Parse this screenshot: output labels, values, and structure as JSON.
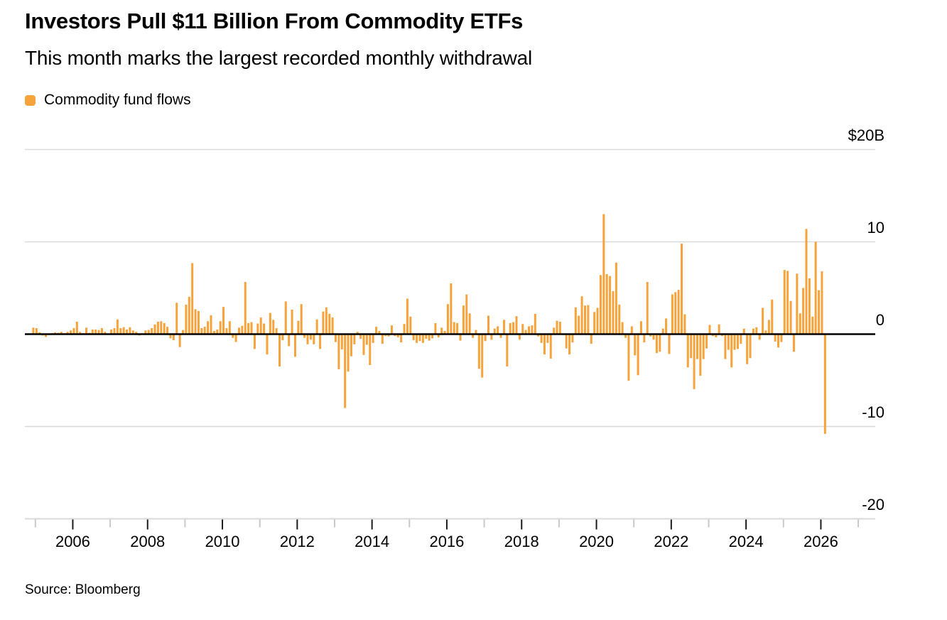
{
  "header": {
    "title": "Investors Pull $11 Billion From Commodity ETFs",
    "subtitle": "This month marks the largest recorded monthly withdrawal"
  },
  "legend": {
    "label": "Commodity fund flows"
  },
  "source": "Source: Bloomberg",
  "colors": {
    "bar": "#F7A33B",
    "gridline": "#D9D9D9",
    "zero_line": "#000000",
    "axis_line": "#D9D9D9",
    "tick_major": "#1A1A1A",
    "tick_minor": "#C9C9C9",
    "text": "#000000"
  },
  "y_axis": {
    "labels": [
      {
        "text": "$20B",
        "value": 20
      },
      {
        "text": "10",
        "value": 10
      },
      {
        "text": "0",
        "value": 0
      },
      {
        "text": "-10",
        "value": -10
      },
      {
        "text": "-20",
        "value": -20
      }
    ],
    "gridline_values": [
      20,
      10,
      -10
    ],
    "axis_value": -20
  },
  "x_axis": {
    "tick_years_start": 2005,
    "tick_years_end": 2027,
    "labeled_years": [
      2006,
      2008,
      2010,
      2012,
      2014,
      2016,
      2018,
      2020,
      2022,
      2024,
      2026
    ]
  },
  "chart_data": {
    "type": "bar",
    "title": "Investors Pull $11 Billion From Commodity ETFs",
    "subtitle": "This month marks the largest recorded monthly withdrawal",
    "series_name": "Commodity fund flows",
    "unit": "billion USD per month",
    "start_month": "2004-12",
    "end_month": "2026-02",
    "ylim": [
      -20,
      22
    ],
    "grid": "horizontal",
    "legend_position": "top-left",
    "values": [
      0.7,
      0.65,
      0.2,
      -0.15,
      -0.3,
      -0.1,
      0.1,
      0.2,
      0.15,
      0.25,
      0.1,
      0.25,
      0.4,
      0.65,
      1.35,
      0.25,
      0.1,
      0.7,
      0.15,
      0.5,
      0.5,
      0.45,
      0.65,
      0.25,
      0.05,
      0.5,
      0.65,
      1.6,
      0.65,
      0.75,
      0.5,
      0.75,
      0.4,
      0.25,
      -0.15,
      0.1,
      0.4,
      0.45,
      0.65,
      1.05,
      1.35,
      1.4,
      1.2,
      0.8,
      -0.45,
      -0.65,
      3.4,
      -1.4,
      0.45,
      3.2,
      4.05,
      7.7,
      2.7,
      2.5,
      0.65,
      0.8,
      1.4,
      2.05,
      0.35,
      0.5,
      1.4,
      2.95,
      0.65,
      1.4,
      -0.4,
      -0.85,
      0.7,
      0.9,
      5.65,
      1.2,
      1.3,
      -1.6,
      1.15,
      1.8,
      1.15,
      -2.2,
      2.3,
      1.55,
      0.65,
      -3.5,
      -0.65,
      3.55,
      -1.3,
      2.65,
      -2.45,
      1.45,
      3.25,
      -0.4,
      -1.1,
      -0.6,
      -1.1,
      1.6,
      -1.6,
      2.45,
      2.9,
      2.2,
      1.8,
      -0.85,
      -3.8,
      -1.65,
      -8.0,
      -4.05,
      -2.4,
      -1.1,
      0.25,
      -0.5,
      -2.25,
      -1.15,
      -3.35,
      -0.95,
      0.8,
      0.35,
      -1.05,
      -0.2,
      -0.25,
      0.95,
      -0.2,
      -0.35,
      -0.9,
      1.1,
      3.85,
      1.9,
      -0.65,
      -0.95,
      -0.75,
      -0.95,
      -0.5,
      -0.7,
      -0.45,
      1.2,
      -0.35,
      0.7,
      0.35,
      3.25,
      5.5,
      1.3,
      1.2,
      -0.7,
      3.1,
      4.3,
      2.25,
      -0.4,
      0.45,
      -3.75,
      -4.7,
      -0.75,
      2.0,
      -0.6,
      0.6,
      0.85,
      -0.4,
      1.55,
      -3.5,
      1.2,
      1.3,
      1.95,
      -0.6,
      1.1,
      0.45,
      0.85,
      0.95,
      2.2,
      -0.25,
      -0.95,
      -2.2,
      -0.95,
      -2.65,
      0.7,
      1.45,
      1.35,
      -0.1,
      -1.55,
      -2.2,
      -0.9,
      2.9,
      2.0,
      4.1,
      3.1,
      3.15,
      -1.05,
      2.4,
      2.85,
      6.4,
      13.0,
      6.5,
      6.3,
      4.65,
      7.75,
      3.2,
      1.3,
      -0.4,
      -5.05,
      0.85,
      -2.3,
      -4.45,
      1.4,
      -0.9,
      5.65,
      -0.25,
      -0.6,
      -2.05,
      -1.9,
      0.6,
      1.7,
      -2.15,
      4.3,
      4.55,
      4.8,
      9.8,
      2.15,
      -3.6,
      -2.6,
      -5.95,
      -2.7,
      -4.5,
      -2.7,
      -1.55,
      1.0,
      -0.2,
      -0.35,
      1.05,
      -0.2,
      -2.7,
      -1.7,
      -3.6,
      -1.7,
      -1.6,
      -1.05,
      0.6,
      -3.25,
      -2.6,
      0.6,
      0.75,
      -0.6,
      2.85,
      0.4,
      1.55,
      3.75,
      -0.8,
      -1.45,
      -0.85,
      6.95,
      6.85,
      3.6,
      -1.9,
      6.55,
      2.25,
      5.0,
      11.4,
      6.05,
      1.9,
      10.0,
      4.75,
      6.8,
      -10.8
    ]
  }
}
